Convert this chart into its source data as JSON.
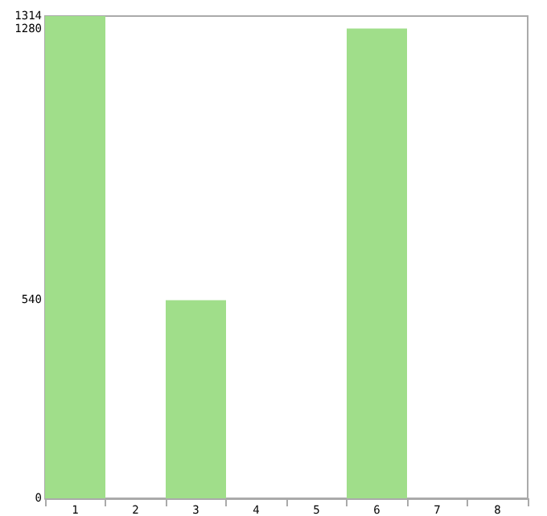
{
  "chart_data": {
    "type": "bar",
    "categories": [
      "1",
      "2",
      "3",
      "4",
      "5",
      "6",
      "7",
      "8"
    ],
    "values": [
      1314,
      0,
      540,
      0,
      0,
      1280,
      0,
      0
    ],
    "color": "#a0de8a",
    "ylim": [
      0,
      1314
    ],
    "yticks": [
      0,
      540,
      1280,
      1314
    ],
    "grid": false
  }
}
